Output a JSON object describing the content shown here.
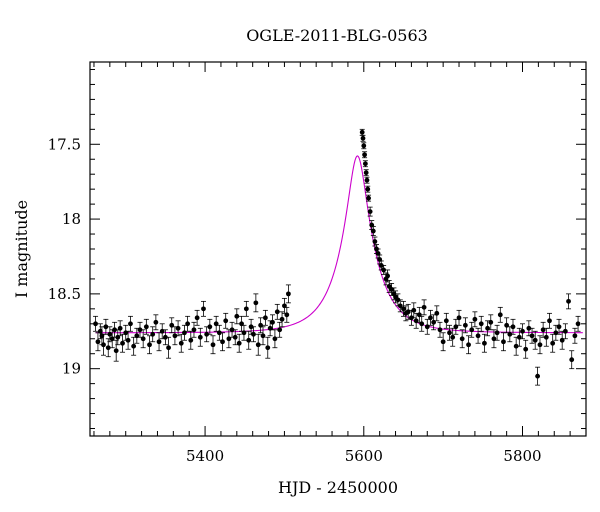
{
  "chart_data": {
    "type": "scatter",
    "title": "OGLE-2011-BLG-0563",
    "xlabel": "HJD - 2450000",
    "ylabel": "I magnitude",
    "xlim": [
      5255,
      5880
    ],
    "ylim": [
      19.45,
      16.95
    ],
    "y_inverted": true,
    "grid": false,
    "legend": "none",
    "x_major_ticks": [
      5400,
      5600,
      5800
    ],
    "x_tick_labels": [
      "5400",
      "5600",
      "5800"
    ],
    "x_minor_step": 20,
    "y_major_ticks": [
      17.5,
      18,
      18.5,
      19
    ],
    "y_tick_labels": [
      "17.5",
      "18",
      "18.5",
      "19"
    ],
    "y_minor_step": 0.1,
    "colors": {
      "points": "#000000",
      "model": "#cc00cc"
    },
    "model": {
      "description_type": "point-lens fit curve",
      "t0": 5592,
      "tE": 45,
      "u0": 0.26,
      "baseline_mag": 18.76,
      "blend_fraction": 0.67
    },
    "series": [
      {
        "kind": "observations",
        "x": [
          5262,
          5265,
          5268,
          5270,
          5272,
          5275,
          5278,
          5280,
          5283,
          5286,
          5288,
          5290,
          5293,
          5296,
          5300,
          5303,
          5306,
          5310,
          5314,
          5318,
          5322,
          5326,
          5330,
          5334,
          5338,
          5342,
          5346,
          5350,
          5354,
          5358,
          5362,
          5366,
          5370,
          5374,
          5378,
          5382,
          5386,
          5390,
          5394,
          5398,
          5402,
          5406,
          5410,
          5414,
          5418,
          5422,
          5426,
          5430,
          5434,
          5438,
          5440,
          5443,
          5446,
          5449,
          5452,
          5455,
          5458,
          5461,
          5464,
          5467,
          5470,
          5473,
          5476,
          5479,
          5482,
          5485,
          5488,
          5491,
          5494,
          5497,
          5500,
          5503,
          5505,
          5598,
          5599,
          5600,
          5601,
          5602,
          5603,
          5604,
          5605,
          5606,
          5608,
          5610,
          5612,
          5614,
          5616,
          5618,
          5620,
          5622,
          5625,
          5628,
          5630,
          5632,
          5635,
          5638,
          5640,
          5643,
          5646,
          5650,
          5653,
          5656,
          5660,
          5663,
          5666,
          5670,
          5673,
          5676,
          5680,
          5684,
          5688,
          5692,
          5696,
          5700,
          5704,
          5708,
          5712,
          5716,
          5720,
          5724,
          5728,
          5732,
          5736,
          5740,
          5744,
          5748,
          5752,
          5756,
          5760,
          5764,
          5768,
          5772,
          5776,
          5780,
          5784,
          5788,
          5792,
          5796,
          5800,
          5804,
          5808,
          5812,
          5816,
          5819,
          5822,
          5826,
          5830,
          5834,
          5838,
          5842,
          5846,
          5850,
          5854,
          5858,
          5862,
          5866,
          5870
        ],
        "y": [
          18.7,
          18.82,
          18.75,
          18.78,
          18.84,
          18.72,
          18.86,
          18.77,
          18.8,
          18.74,
          18.88,
          18.79,
          18.73,
          18.83,
          18.76,
          18.81,
          18.7,
          18.85,
          18.78,
          18.74,
          18.8,
          18.72,
          18.84,
          18.77,
          18.69,
          18.82,
          18.75,
          18.79,
          18.86,
          18.71,
          18.78,
          18.73,
          18.83,
          18.76,
          18.7,
          18.81,
          18.74,
          18.66,
          18.79,
          18.6,
          18.77,
          18.72,
          18.84,
          18.7,
          18.76,
          18.82,
          18.68,
          18.8,
          18.74,
          18.79,
          18.65,
          18.83,
          18.7,
          18.76,
          18.6,
          18.81,
          18.72,
          18.77,
          18.56,
          18.84,
          18.71,
          18.78,
          18.66,
          18.86,
          18.73,
          18.69,
          18.8,
          18.62,
          18.74,
          18.67,
          18.58,
          18.64,
          18.5,
          17.42,
          17.46,
          17.51,
          17.57,
          17.63,
          17.69,
          17.74,
          17.8,
          17.86,
          17.95,
          18.04,
          18.08,
          18.15,
          18.2,
          18.23,
          18.27,
          18.31,
          18.34,
          18.4,
          18.38,
          18.45,
          18.47,
          18.5,
          18.52,
          18.54,
          18.58,
          18.6,
          18.63,
          18.62,
          18.66,
          18.61,
          18.68,
          18.64,
          18.7,
          18.59,
          18.72,
          18.66,
          18.69,
          18.63,
          18.74,
          18.82,
          18.68,
          18.76,
          18.79,
          18.72,
          18.66,
          18.8,
          18.71,
          18.84,
          18.74,
          18.67,
          18.78,
          18.7,
          18.83,
          18.73,
          18.69,
          18.8,
          18.76,
          18.64,
          18.82,
          18.71,
          18.77,
          18.72,
          18.85,
          18.79,
          18.75,
          18.87,
          18.73,
          18.78,
          18.81,
          19.05,
          18.84,
          18.74,
          18.79,
          18.68,
          18.83,
          18.76,
          18.72,
          18.81,
          18.75,
          18.55,
          18.94,
          18.78,
          18.7
        ],
        "err": [
          0.05,
          0.06,
          0.05,
          0.06,
          0.07,
          0.05,
          0.06,
          0.05,
          0.06,
          0.05,
          0.07,
          0.05,
          0.05,
          0.06,
          0.05,
          0.06,
          0.05,
          0.06,
          0.05,
          0.05,
          0.06,
          0.05,
          0.06,
          0.05,
          0.05,
          0.06,
          0.05,
          0.05,
          0.07,
          0.05,
          0.06,
          0.05,
          0.06,
          0.05,
          0.05,
          0.06,
          0.05,
          0.05,
          0.06,
          0.05,
          0.05,
          0.05,
          0.06,
          0.05,
          0.05,
          0.06,
          0.05,
          0.06,
          0.05,
          0.05,
          0.05,
          0.06,
          0.05,
          0.05,
          0.05,
          0.06,
          0.05,
          0.05,
          0.06,
          0.07,
          0.05,
          0.06,
          0.05,
          0.07,
          0.05,
          0.05,
          0.06,
          0.05,
          0.05,
          0.05,
          0.05,
          0.05,
          0.06,
          0.02,
          0.02,
          0.02,
          0.02,
          0.02,
          0.02,
          0.02,
          0.02,
          0.02,
          0.03,
          0.03,
          0.03,
          0.03,
          0.03,
          0.03,
          0.03,
          0.03,
          0.03,
          0.04,
          0.04,
          0.04,
          0.04,
          0.04,
          0.04,
          0.04,
          0.04,
          0.05,
          0.05,
          0.05,
          0.05,
          0.05,
          0.05,
          0.05,
          0.05,
          0.05,
          0.05,
          0.05,
          0.05,
          0.05,
          0.05,
          0.06,
          0.05,
          0.05,
          0.06,
          0.05,
          0.05,
          0.06,
          0.05,
          0.06,
          0.05,
          0.05,
          0.05,
          0.05,
          0.06,
          0.05,
          0.05,
          0.06,
          0.05,
          0.05,
          0.06,
          0.05,
          0.05,
          0.05,
          0.06,
          0.06,
          0.05,
          0.06,
          0.05,
          0.05,
          0.06,
          0.06,
          0.06,
          0.05,
          0.06,
          0.05,
          0.06,
          0.05,
          0.05,
          0.06,
          0.05,
          0.05,
          0.06,
          0.05,
          0.05
        ]
      }
    ]
  }
}
